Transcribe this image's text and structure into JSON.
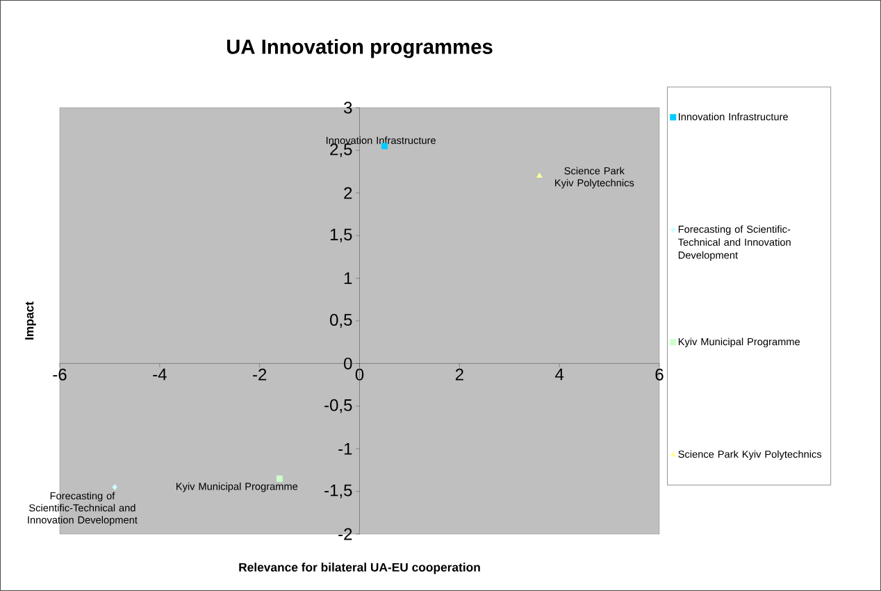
{
  "chart_data": {
    "type": "scatter",
    "title": "UA Innovation programmes",
    "xlabel": "Relevance for bilateral UA-EU cooperation",
    "ylabel": "Impact",
    "series": [
      {
        "name": "Innovation Infrastructure",
        "color": "#00ccff",
        "marker": "square",
        "x": [
          0.5
        ],
        "values": [
          2.55
        ]
      },
      {
        "name": "Forecasting of Scientific-Technical and Innovation Development",
        "color": "#ccffff",
        "marker": "diamond",
        "x": [
          -4.9
        ],
        "values": [
          -1.45
        ]
      },
      {
        "name": "Kyiv Municipal Programme",
        "color": "#ccffcc",
        "marker": "square",
        "x": [
          -1.6
        ],
        "values": [
          -1.35
        ]
      },
      {
        "name": "Science Park Kyiv Polytechnics",
        "color": "#ffff99",
        "marker": "triangle",
        "x": [
          3.6
        ],
        "values": [
          2.2
        ]
      }
    ],
    "xlim": [
      -6,
      6
    ],
    "ylim": [
      -2,
      3
    ],
    "xticks": [
      -6,
      -4,
      -2,
      0,
      2,
      4,
      6
    ],
    "yticks": [
      -2,
      {
        "value": -1.5,
        "label": "-1,5"
      },
      -1,
      {
        "value": -0.5,
        "label": "-0,5"
      },
      0,
      {
        "value": 0.5,
        "label": "0,5"
      },
      1,
      {
        "value": 1.5,
        "label": "1,5"
      },
      2,
      {
        "value": 2.5,
        "label": "2,5"
      },
      3
    ],
    "legend": "right"
  }
}
